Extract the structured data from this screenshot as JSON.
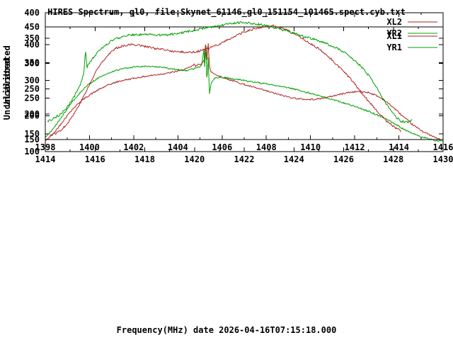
{
  "title": "HIRES Spectrum, gl0, file:Skynet_61146_gl0_151154_101465.spect.cyb.txt",
  "xlabel": "Frequency(MHz) date 2026-04-16T07:15:18.000",
  "chart_data": [
    {
      "type": "line",
      "ylabel": "Uncalibrated",
      "xlim": [
        1414,
        1430
      ],
      "ylim": [
        100,
        450
      ],
      "xticks": [
        1414,
        1416,
        1418,
        1420,
        1422,
        1424,
        1426,
        1428,
        1430
      ],
      "yticks": [
        100,
        150,
        200,
        250,
        300,
        350,
        400,
        450
      ],
      "legend_position": "top-right",
      "grid": false,
      "series": [
        {
          "name": "XL1",
          "color": "#b22222",
          "noise": 2.2,
          "points": [
            [
              1414.0,
              130
            ],
            [
              1414.3,
              148
            ],
            [
              1414.6,
              175
            ],
            [
              1415.0,
              212
            ],
            [
              1415.4,
              240
            ],
            [
              1415.8,
              260
            ],
            [
              1416.2,
              276
            ],
            [
              1416.6,
              289
            ],
            [
              1417.0,
              298
            ],
            [
              1417.5,
              305
            ],
            [
              1418.0,
              311
            ],
            [
              1418.5,
              316
            ],
            [
              1419.0,
              321
            ],
            [
              1419.4,
              327
            ],
            [
              1419.7,
              333
            ],
            [
              1419.9,
              340
            ],
            [
              1420.0,
              345
            ],
            [
              1420.05,
              338
            ],
            [
              1420.15,
              348
            ],
            [
              1420.25,
              342
            ],
            [
              1420.35,
              352
            ],
            [
              1420.42,
              365
            ],
            [
              1420.45,
              420
            ],
            [
              1420.5,
              355
            ],
            [
              1420.55,
              408
            ],
            [
              1420.6,
              340
            ],
            [
              1420.65,
              325
            ],
            [
              1420.8,
              318
            ],
            [
              1421.0,
              312
            ],
            [
              1421.4,
              302
            ],
            [
              1421.8,
              293
            ],
            [
              1422.2,
              284
            ],
            [
              1422.6,
              276
            ],
            [
              1423.0,
              268
            ],
            [
              1423.4,
              260
            ],
            [
              1423.8,
              253
            ],
            [
              1424.2,
              248
            ],
            [
              1424.6,
              246
            ],
            [
              1425.0,
              248
            ],
            [
              1425.4,
              253
            ],
            [
              1425.8,
              260
            ],
            [
              1426.2,
              266
            ],
            [
              1426.6,
              269
            ],
            [
              1427.0,
              266
            ],
            [
              1427.3,
              258
            ],
            [
              1427.6,
              246
            ],
            [
              1428.0,
              224
            ],
            [
              1428.4,
              198
            ],
            [
              1428.8,
              174
            ],
            [
              1429.2,
              156
            ],
            [
              1429.6,
              142
            ],
            [
              1429.9,
              133
            ]
          ]
        },
        {
          "name": "YR1",
          "color": "#00a000",
          "noise": 2.2,
          "points": [
            [
              1414.0,
              140
            ],
            [
              1414.3,
              162
            ],
            [
              1414.6,
              192
            ],
            [
              1415.0,
              232
            ],
            [
              1415.4,
              266
            ],
            [
              1415.8,
              292
            ],
            [
              1416.2,
              310
            ],
            [
              1416.6,
              322
            ],
            [
              1417.0,
              331
            ],
            [
              1417.4,
              336
            ],
            [
              1417.8,
              339
            ],
            [
              1418.2,
              339
            ],
            [
              1418.6,
              337
            ],
            [
              1419.0,
              333
            ],
            [
              1419.4,
              329
            ],
            [
              1419.7,
              328
            ],
            [
              1419.9,
              331
            ],
            [
              1420.05,
              334
            ],
            [
              1420.2,
              338
            ],
            [
              1420.3,
              345
            ],
            [
              1420.38,
              388
            ],
            [
              1420.42,
              310
            ],
            [
              1420.45,
              428
            ],
            [
              1420.5,
              285
            ],
            [
              1420.55,
              368
            ],
            [
              1420.6,
              262
            ],
            [
              1420.68,
              295
            ],
            [
              1420.8,
              305
            ],
            [
              1421.0,
              309
            ],
            [
              1421.4,
              306
            ],
            [
              1421.8,
              302
            ],
            [
              1422.2,
              297
            ],
            [
              1422.6,
              293
            ],
            [
              1423.0,
              289
            ],
            [
              1423.4,
              284
            ],
            [
              1423.8,
              279
            ],
            [
              1424.2,
              272
            ],
            [
              1424.6,
              265
            ],
            [
              1425.0,
              257
            ],
            [
              1425.4,
              249
            ],
            [
              1425.8,
              241
            ],
            [
              1426.2,
              232
            ],
            [
              1426.6,
              223
            ],
            [
              1427.0,
              213
            ],
            [
              1427.4,
              201
            ],
            [
              1427.8,
              188
            ],
            [
              1428.2,
              172
            ],
            [
              1428.6,
              156
            ],
            [
              1429.0,
              144
            ],
            [
              1429.4,
              136
            ],
            [
              1429.7,
              131
            ],
            [
              1430.0,
              128
            ]
          ]
        }
      ]
    },
    {
      "type": "line",
      "ylabel": "Uncalibrated",
      "xlim": [
        1398,
        1416
      ],
      "ylim": [
        150,
        400
      ],
      "xticks": [
        1398,
        1400,
        1402,
        1404,
        1406,
        1408,
        1410,
        1412,
        1414,
        1416
      ],
      "yticks": [
        150,
        200,
        250,
        300,
        350,
        400
      ],
      "legend_position": "top-right",
      "grid": false,
      "series": [
        {
          "name": "XL2",
          "color": "#b22222",
          "noise": 2.2,
          "points": [
            [
              1398.2,
              158
            ],
            [
              1398.5,
              163
            ],
            [
              1398.8,
              172
            ],
            [
              1399.1,
              188
            ],
            [
              1399.4,
              208
            ],
            [
              1399.7,
              232
            ],
            [
              1400.0,
              258
            ],
            [
              1400.3,
              285
            ],
            [
              1400.6,
              305
            ],
            [
              1400.9,
              320
            ],
            [
              1401.2,
              330
            ],
            [
              1401.5,
              335
            ],
            [
              1401.8,
              337
            ],
            [
              1402.1,
              337
            ],
            [
              1402.4,
              335
            ],
            [
              1402.8,
              331
            ],
            [
              1403.2,
              328
            ],
            [
              1403.6,
              325
            ],
            [
              1404.0,
              323
            ],
            [
              1404.4,
              322
            ],
            [
              1404.8,
              323
            ],
            [
              1405.2,
              327
            ],
            [
              1405.6,
              333
            ],
            [
              1406.0,
              341
            ],
            [
              1406.4,
              350
            ],
            [
              1406.8,
              358
            ],
            [
              1407.2,
              365
            ],
            [
              1407.6,
              370
            ],
            [
              1408.0,
              373
            ],
            [
              1408.3,
              374
            ],
            [
              1408.6,
              371
            ],
            [
              1409.0,
              364
            ],
            [
              1409.4,
              355
            ],
            [
              1409.8,
              345
            ],
            [
              1410.2,
              334
            ],
            [
              1410.6,
              321
            ],
            [
              1411.0,
              306
            ],
            [
              1411.4,
              289
            ],
            [
              1411.8,
              270
            ],
            [
              1412.2,
              249
            ],
            [
              1412.6,
              227
            ],
            [
              1413.0,
              206
            ],
            [
              1413.4,
              188
            ],
            [
              1413.8,
              174
            ],
            [
              1414.1,
              167
            ]
          ]
        },
        {
          "name": "YR2",
          "color": "#00a000",
          "noise": 2.2,
          "points": [
            [
              1398.1,
              185
            ],
            [
              1398.4,
              192
            ],
            [
              1398.7,
              200
            ],
            [
              1399.0,
              214
            ],
            [
              1399.3,
              234
            ],
            [
              1399.6,
              260
            ],
            [
              1399.75,
              282
            ],
            [
              1399.82,
              330
            ],
            [
              1399.88,
              292
            ],
            [
              1400.0,
              302
            ],
            [
              1400.3,
              318
            ],
            [
              1400.6,
              332
            ],
            [
              1400.9,
              342
            ],
            [
              1401.2,
              349
            ],
            [
              1401.5,
              353
            ],
            [
              1401.8,
              356
            ],
            [
              1402.2,
              357
            ],
            [
              1402.6,
              357
            ],
            [
              1403.0,
              356
            ],
            [
              1403.4,
              356
            ],
            [
              1403.8,
              358
            ],
            [
              1404.2,
              361
            ],
            [
              1404.6,
              364
            ],
            [
              1405.0,
              368
            ],
            [
              1405.4,
              371
            ],
            [
              1405.8,
              374
            ],
            [
              1406.2,
              377
            ],
            [
              1406.6,
              380
            ],
            [
              1407.0,
              381
            ],
            [
              1407.4,
              379
            ],
            [
              1407.8,
              376
            ],
            [
              1408.2,
              372
            ],
            [
              1408.6,
              368
            ],
            [
              1409.0,
              363
            ],
            [
              1409.4,
              358
            ],
            [
              1409.8,
              352
            ],
            [
              1410.2,
              347
            ],
            [
              1410.6,
              341
            ],
            [
              1411.0,
              334
            ],
            [
              1411.4,
              325
            ],
            [
              1411.8,
              313
            ],
            [
              1412.2,
              298
            ],
            [
              1412.6,
              278
            ],
            [
              1413.0,
              252
            ],
            [
              1413.4,
              222
            ],
            [
              1413.8,
              197
            ],
            [
              1414.1,
              186
            ],
            [
              1414.4,
              184
            ],
            [
              1414.6,
              189
            ]
          ]
        }
      ]
    }
  ]
}
